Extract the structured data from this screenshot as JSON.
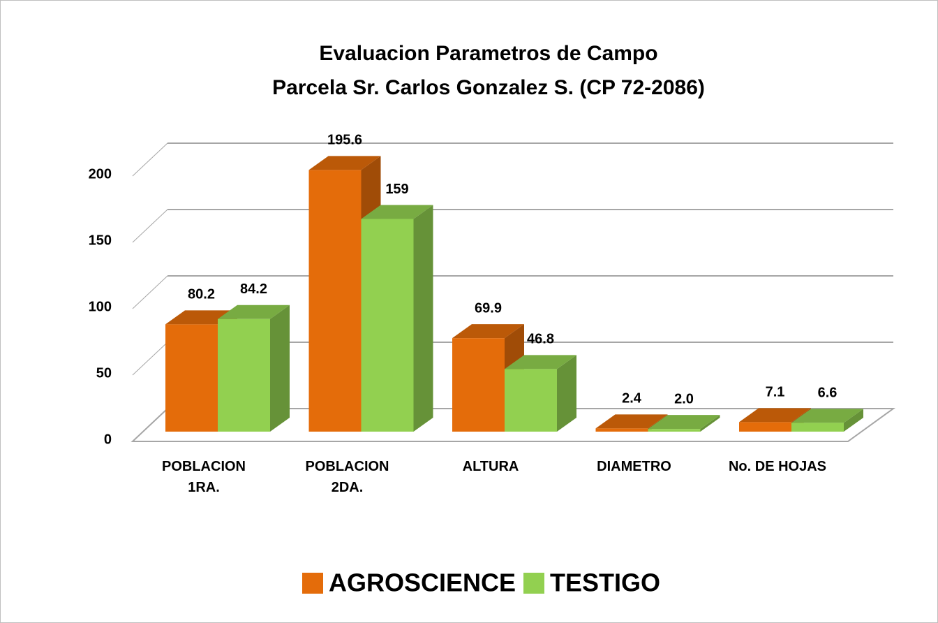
{
  "chart_data": {
    "type": "bar3d",
    "title": "Evaluacion Parametros de Campo",
    "subtitle": "Parcela Sr. Carlos Gonzalez S. (CP 72-2086)",
    "categories": [
      "POBLACION 1RA.",
      "POBLACION 2DA.",
      "ALTURA",
      "DIAMETRO",
      "No. DE HOJAS"
    ],
    "series": [
      {
        "name": "AGROSCIENCE",
        "color": "#e46c0a",
        "values": [
          80.2,
          195.6,
          69.9,
          2.4,
          7.1
        ]
      },
      {
        "name": "TESTIGO",
        "color": "#92d050",
        "values": [
          84.2,
          159,
          46.8,
          2.0,
          6.6
        ],
        "value_labels": [
          "84.2",
          "159",
          "46.8",
          "2.0",
          "6.6"
        ]
      }
    ],
    "ylim": [
      0,
      200
    ],
    "yticks": [
      0,
      50,
      100,
      150,
      200
    ],
    "grid": true,
    "legend": "bottom"
  }
}
